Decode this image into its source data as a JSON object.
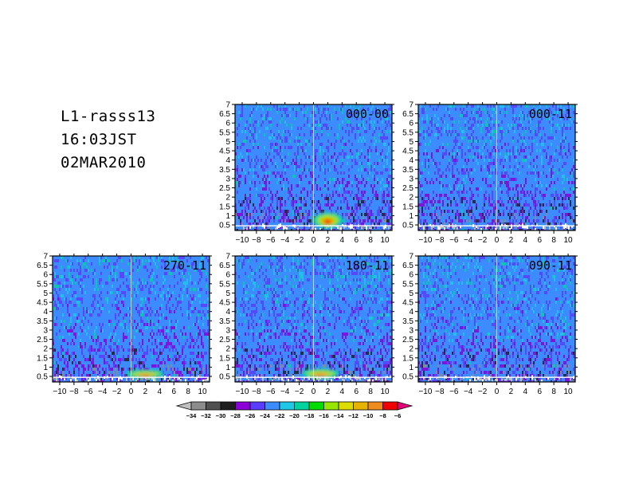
{
  "header": {
    "station": "L1-rasss13",
    "time": "16:03JST",
    "date": "02MAR2010"
  },
  "colors": {
    "panel_background": "#3c8cff",
    "text": "#000000"
  },
  "chart_data": [
    {
      "type": "heatmap",
      "panel_label": "000-00",
      "x_ticks": [
        -10,
        -8,
        -6,
        -4,
        -2,
        0,
        2,
        4,
        6,
        8,
        10
      ],
      "y_ticks": [
        0.5,
        1,
        1.5,
        2,
        2.5,
        3,
        3.5,
        4,
        4.5,
        5,
        5.5,
        6,
        6.5,
        7
      ],
      "xlim": [
        -11,
        11
      ],
      "ylim": [
        0.2,
        7
      ],
      "features": [
        {
          "kind": "hotspot",
          "x": [
            0.5,
            3.5
          ],
          "y": [
            0.45,
            1.05
          ],
          "peak": -6
        }
      ]
    },
    {
      "type": "heatmap",
      "panel_label": "000-11",
      "x_ticks": [
        -10,
        -8,
        -6,
        -4,
        -2,
        0,
        2,
        4,
        6,
        8,
        10
      ],
      "y_ticks": [
        0.5,
        1,
        1.5,
        2,
        2.5,
        3,
        3.5,
        4,
        4.5,
        5,
        5.5,
        6,
        6.5,
        7
      ],
      "xlim": [
        -11,
        11
      ],
      "ylim": [
        0.2,
        7
      ],
      "features": []
    },
    {
      "type": "heatmap",
      "panel_label": "270-11",
      "x_ticks": [
        -10,
        -8,
        -6,
        -4,
        -2,
        0,
        2,
        4,
        6,
        8,
        10
      ],
      "y_ticks": [
        0.5,
        1,
        1.5,
        2,
        2.5,
        3,
        3.5,
        4,
        4.5,
        5,
        5.5,
        6,
        6.5,
        7
      ],
      "xlim": [
        -11,
        11
      ],
      "ylim": [
        0.2,
        7
      ],
      "features": [
        {
          "kind": "hotspot",
          "x": [
            0,
            4
          ],
          "y": [
            0.5,
            0.75
          ],
          "peak": -8
        }
      ]
    },
    {
      "type": "heatmap",
      "panel_label": "180-11",
      "x_ticks": [
        -10,
        -8,
        -6,
        -4,
        -2,
        0,
        2,
        4,
        6,
        8,
        10
      ],
      "y_ticks": [
        0.5,
        1,
        1.5,
        2,
        2.5,
        3,
        3.5,
        4,
        4.5,
        5,
        5.5,
        6,
        6.5,
        7
      ],
      "xlim": [
        -11,
        11
      ],
      "ylim": [
        0.2,
        7
      ],
      "features": [
        {
          "kind": "hotspot",
          "x": [
            -1,
            3
          ],
          "y": [
            0.5,
            0.8
          ],
          "peak": -8
        }
      ]
    },
    {
      "type": "heatmap",
      "panel_label": "090-11",
      "x_ticks": [
        -10,
        -8,
        -6,
        -4,
        -2,
        0,
        2,
        4,
        6,
        8,
        10
      ],
      "y_ticks": [
        0.5,
        1,
        1.5,
        2,
        2.5,
        3,
        3.5,
        4,
        4.5,
        5,
        5.5,
        6,
        6.5,
        7
      ],
      "xlim": [
        -11,
        11
      ],
      "ylim": [
        0.2,
        7
      ],
      "features": []
    }
  ],
  "colorbar": {
    "levels": [
      -34,
      -32,
      -30,
      -28,
      -26,
      -24,
      -22,
      -20,
      -18,
      -16,
      -14,
      -12,
      -10,
      -8,
      -6
    ],
    "colors": [
      "#c0c0c0",
      "#8c8c8c",
      "#505050",
      "#1e1e1e",
      "#8a00d6",
      "#5a3cff",
      "#3c8cff",
      "#1ec8e6",
      "#00d2a0",
      "#00dc00",
      "#96e600",
      "#dcdc00",
      "#e6b400",
      "#f08c1e",
      "#f00000",
      "#e6007a"
    ]
  }
}
